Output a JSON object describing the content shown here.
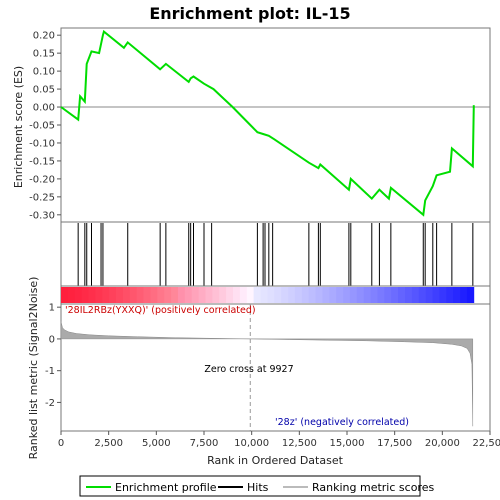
{
  "chart_data": [
    {
      "type": "line",
      "title": "Enrichment plot: IL-15",
      "ylabel": "Enrichment score (ES)",
      "ylim": [
        -0.32,
        0.22
      ],
      "xlim": [
        0,
        22500
      ],
      "yticks": [
        "0.20",
        "0.15",
        "0.10",
        "0.05",
        "0.00",
        "-0.05",
        "-0.10",
        "-0.15",
        "-0.20",
        "-0.25",
        "-0.30"
      ],
      "series": [
        {
          "name": "Enrichment profile",
          "color": "#00dd00",
          "x": [
            0,
            900,
            1000,
            1250,
            1350,
            1600,
            2000,
            2100,
            2200,
            2250,
            3300,
            3500,
            5200,
            5500,
            6700,
            6800,
            6950,
            7500,
            8000,
            8500,
            9000,
            9927,
            10300,
            10600,
            10900,
            11200,
            13000,
            13500,
            13600,
            15100,
            15200,
            16300,
            16700,
            17200,
            17300,
            19000,
            19100,
            19500,
            19700,
            20400,
            20500,
            21600,
            21650
          ],
          "y": [
            0.0,
            -0.035,
            0.03,
            0.015,
            0.12,
            0.155,
            0.15,
            0.175,
            0.2,
            0.21,
            0.165,
            0.18,
            0.105,
            0.12,
            0.07,
            0.08,
            0.085,
            0.065,
            0.05,
            0.025,
            0.0,
            -0.05,
            -0.07,
            -0.075,
            -0.08,
            -0.09,
            -0.155,
            -0.17,
            -0.16,
            -0.23,
            -0.2,
            -0.255,
            -0.23,
            -0.255,
            -0.225,
            -0.3,
            -0.26,
            -0.22,
            -0.19,
            -0.18,
            -0.115,
            -0.165,
            0.005
          ]
        }
      ]
    },
    {
      "type": "scatter",
      "name": "Hits",
      "xlim": [
        0,
        22500
      ],
      "hits": [
        900,
        1250,
        1350,
        1600,
        2100,
        2200,
        3500,
        5200,
        5500,
        6700,
        6800,
        6950,
        7500,
        7900,
        10300,
        10600,
        10700,
        10900,
        11100,
        13000,
        13500,
        13600,
        15100,
        15200,
        16300,
        16700,
        17300,
        19000,
        19100,
        19500,
        19700,
        20500,
        21600
      ]
    },
    {
      "type": "area",
      "xlabel": "Rank in Ordered Dataset",
      "ylabel": "Ranked list metric (Signal2Noise)",
      "ylim": [
        -2.9,
        1.1
      ],
      "xlim": [
        0,
        22500
      ],
      "xticks": [
        "0",
        "2,500",
        "5,000",
        "7,500",
        "10,000",
        "12,500",
        "15,000",
        "17,500",
        "20,000",
        "22,500"
      ],
      "yticks": [
        "1",
        "0",
        "-1",
        "-2"
      ],
      "zero_cross": 9927,
      "metric_x": [
        0,
        80,
        200,
        400,
        800,
        1500,
        2500,
        4000,
        6000,
        8000,
        9927,
        12000,
        14000,
        16000,
        18000,
        19500,
        20500,
        21000,
        21300,
        21450,
        21550,
        21600
      ],
      "metric_y": [
        0.55,
        0.35,
        0.28,
        0.22,
        0.17,
        0.13,
        0.1,
        0.07,
        0.04,
        0.02,
        0.0,
        -0.02,
        -0.04,
        -0.06,
        -0.09,
        -0.12,
        -0.17,
        -0.22,
        -0.3,
        -0.45,
        -0.8,
        -2.75
      ],
      "annotations": {
        "zero_cross": "Zero cross at 9927",
        "positive": "'28IL2RBz(YXXQ)' (positively correlated)",
        "negative": "'28z' (negatively correlated)"
      }
    }
  ],
  "legend": {
    "enrichment": "Enrichment profile",
    "hits": "Hits",
    "ranking": "Ranking metric scores"
  },
  "colors": {
    "es_line": "#00dd00",
    "zero_line": "#888888",
    "positive_label": "#cc0000",
    "negative_label": "#0000aa",
    "metric_fill": "#aaaaaa"
  }
}
